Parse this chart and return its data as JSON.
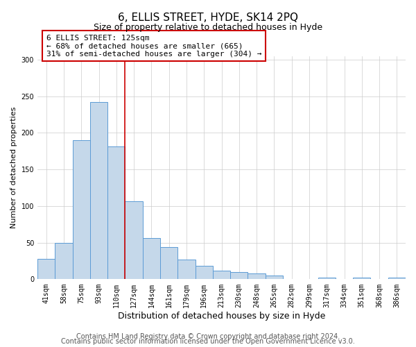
{
  "title": "6, ELLIS STREET, HYDE, SK14 2PQ",
  "subtitle": "Size of property relative to detached houses in Hyde",
  "xlabel": "Distribution of detached houses by size in Hyde",
  "ylabel": "Number of detached properties",
  "bar_labels": [
    "41sqm",
    "58sqm",
    "75sqm",
    "93sqm",
    "110sqm",
    "127sqm",
    "144sqm",
    "161sqm",
    "179sqm",
    "196sqm",
    "213sqm",
    "230sqm",
    "248sqm",
    "265sqm",
    "282sqm",
    "299sqm",
    "317sqm",
    "334sqm",
    "351sqm",
    "368sqm",
    "386sqm"
  ],
  "bar_values": [
    28,
    50,
    190,
    242,
    181,
    107,
    56,
    44,
    27,
    18,
    12,
    10,
    8,
    5,
    0,
    0,
    2,
    0,
    2,
    0,
    2
  ],
  "bar_color": "#c5d8ea",
  "bar_edge_color": "#5b9bd5",
  "vline_index": 4,
  "vline_color": "#cc0000",
  "annotation_line1": "6 ELLIS STREET: 125sqm",
  "annotation_line2": "← 68% of detached houses are smaller (665)",
  "annotation_line3": "31% of semi-detached houses are larger (304) →",
  "annotation_box_color": "white",
  "annotation_box_edge": "#cc0000",
  "ylim": [
    0,
    305
  ],
  "yticks": [
    0,
    50,
    100,
    150,
    200,
    250,
    300
  ],
  "footer1": "Contains HM Land Registry data © Crown copyright and database right 2024.",
  "footer2": "Contains public sector information licensed under the Open Government Licence v3.0.",
  "title_fontsize": 11,
  "subtitle_fontsize": 9,
  "ylabel_fontsize": 8,
  "xlabel_fontsize": 9,
  "tick_fontsize": 7,
  "annotation_fontsize": 8,
  "footer_fontsize": 7
}
